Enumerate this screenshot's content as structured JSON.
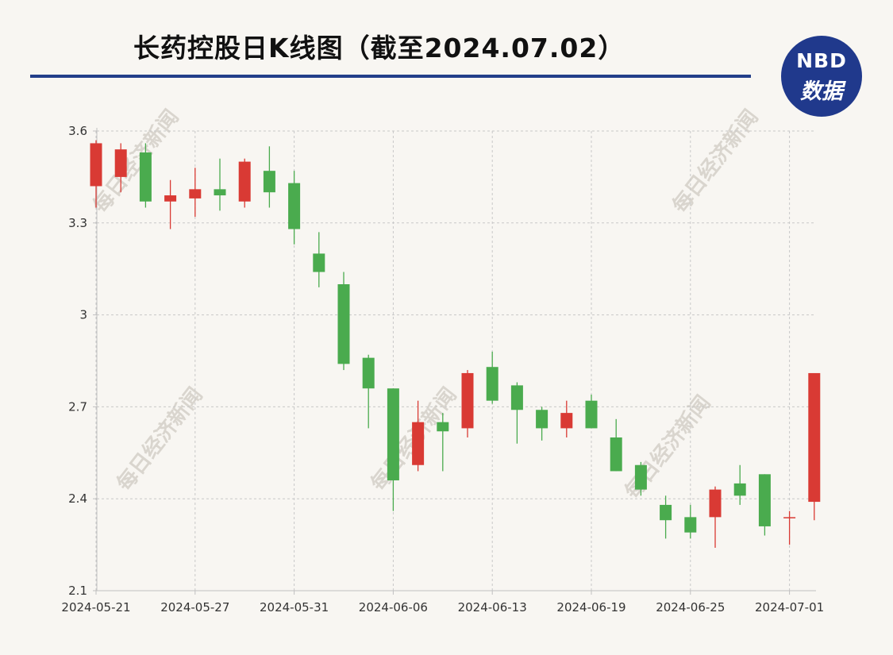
{
  "header": {
    "title": "长药控股日K线图（截至2024.07.02）",
    "logo_top": "NBD",
    "logo_bottom": "数据"
  },
  "watermark": "每日经济新闻",
  "colors": {
    "up": "#d93a34",
    "down": "#4aab4e",
    "grid": "#c8c8c8",
    "axis": "#c0c0c0"
  },
  "chart_data": {
    "type": "candlestick",
    "title": "长药控股日K线图（截至2024.07.02）",
    "ylim": [
      2.1,
      3.6
    ],
    "y_ticks": [
      "3.6",
      "3.3",
      "3",
      "2.7",
      "2.4",
      "2.1"
    ],
    "x_ticks": [
      {
        "label": "2024-05-21",
        "index": 0
      },
      {
        "label": "2024-05-27",
        "index": 4
      },
      {
        "label": "2024-05-31",
        "index": 8
      },
      {
        "label": "2024-06-06",
        "index": 12
      },
      {
        "label": "2024-06-13",
        "index": 16
      },
      {
        "label": "2024-06-19",
        "index": 20
      },
      {
        "label": "2024-06-25",
        "index": 24
      },
      {
        "label": "2024-07-01",
        "index": 28
      }
    ],
    "candles": [
      {
        "open": 3.42,
        "close": 3.56,
        "high": 3.57,
        "low": 3.35
      },
      {
        "open": 3.45,
        "close": 3.54,
        "high": 3.56,
        "low": 3.4
      },
      {
        "open": 3.53,
        "close": 3.37,
        "high": 3.56,
        "low": 3.35
      },
      {
        "open": 3.37,
        "close": 3.39,
        "high": 3.44,
        "low": 3.28
      },
      {
        "open": 3.38,
        "close": 3.41,
        "high": 3.48,
        "low": 3.32
      },
      {
        "open": 3.41,
        "close": 3.39,
        "high": 3.51,
        "low": 3.34
      },
      {
        "open": 3.37,
        "close": 3.5,
        "high": 3.51,
        "low": 3.35
      },
      {
        "open": 3.47,
        "close": 3.4,
        "high": 3.55,
        "low": 3.35
      },
      {
        "open": 3.43,
        "close": 3.28,
        "high": 3.47,
        "low": 3.23
      },
      {
        "open": 3.2,
        "close": 3.14,
        "high": 3.27,
        "low": 3.09
      },
      {
        "open": 3.1,
        "close": 2.84,
        "high": 3.14,
        "low": 2.82
      },
      {
        "open": 2.86,
        "close": 2.76,
        "high": 2.87,
        "low": 2.63
      },
      {
        "open": 2.76,
        "close": 2.46,
        "high": 2.76,
        "low": 2.36
      },
      {
        "open": 2.51,
        "close": 2.65,
        "high": 2.72,
        "low": 2.49
      },
      {
        "open": 2.65,
        "close": 2.62,
        "high": 2.68,
        "low": 2.49
      },
      {
        "open": 2.63,
        "close": 2.81,
        "high": 2.82,
        "low": 2.6
      },
      {
        "open": 2.83,
        "close": 2.72,
        "high": 2.88,
        "low": 2.71
      },
      {
        "open": 2.77,
        "close": 2.69,
        "high": 2.78,
        "low": 2.58
      },
      {
        "open": 2.69,
        "close": 2.63,
        "high": 2.7,
        "low": 2.59
      },
      {
        "open": 2.63,
        "close": 2.68,
        "high": 2.72,
        "low": 2.6
      },
      {
        "open": 2.72,
        "close": 2.63,
        "high": 2.74,
        "low": 2.63
      },
      {
        "open": 2.6,
        "close": 2.49,
        "high": 2.66,
        "low": 2.49
      },
      {
        "open": 2.51,
        "close": 2.43,
        "high": 2.52,
        "low": 2.41
      },
      {
        "open": 2.38,
        "close": 2.33,
        "high": 2.41,
        "low": 2.27
      },
      {
        "open": 2.34,
        "close": 2.29,
        "high": 2.38,
        "low": 2.27
      },
      {
        "open": 2.34,
        "close": 2.43,
        "high": 2.44,
        "low": 2.24
      },
      {
        "open": 2.45,
        "close": 2.41,
        "high": 2.51,
        "low": 2.38
      },
      {
        "open": 2.48,
        "close": 2.31,
        "high": 2.48,
        "low": 2.28
      },
      {
        "open": 2.34,
        "close": 2.34,
        "high": 2.36,
        "low": 2.25
      },
      {
        "open": 2.39,
        "close": 2.81,
        "high": 2.81,
        "low": 2.33
      }
    ]
  }
}
